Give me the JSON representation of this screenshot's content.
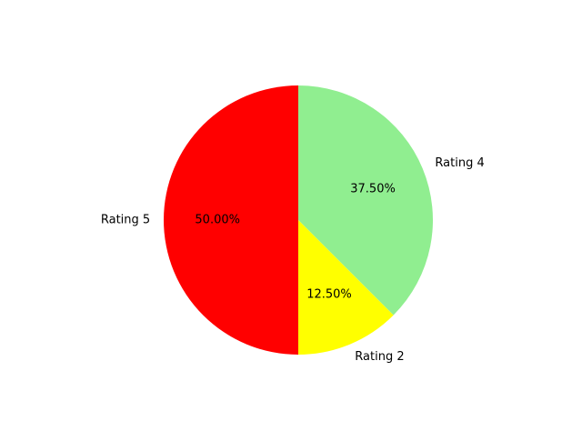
{
  "chart_data": {
    "type": "pie",
    "title": "",
    "start_angle_deg": 90,
    "direction": "clockwise",
    "slices": [
      {
        "label": "Rating 4",
        "value": 37.5,
        "pct_label": "37.50%",
        "color": "#90ee90"
      },
      {
        "label": "Rating 2",
        "value": 12.5,
        "pct_label": "12.50%",
        "color": "#ffff00"
      },
      {
        "label": "Rating 5",
        "value": 50.0,
        "pct_label": "50.00%",
        "color": "#ff0000"
      }
    ]
  }
}
